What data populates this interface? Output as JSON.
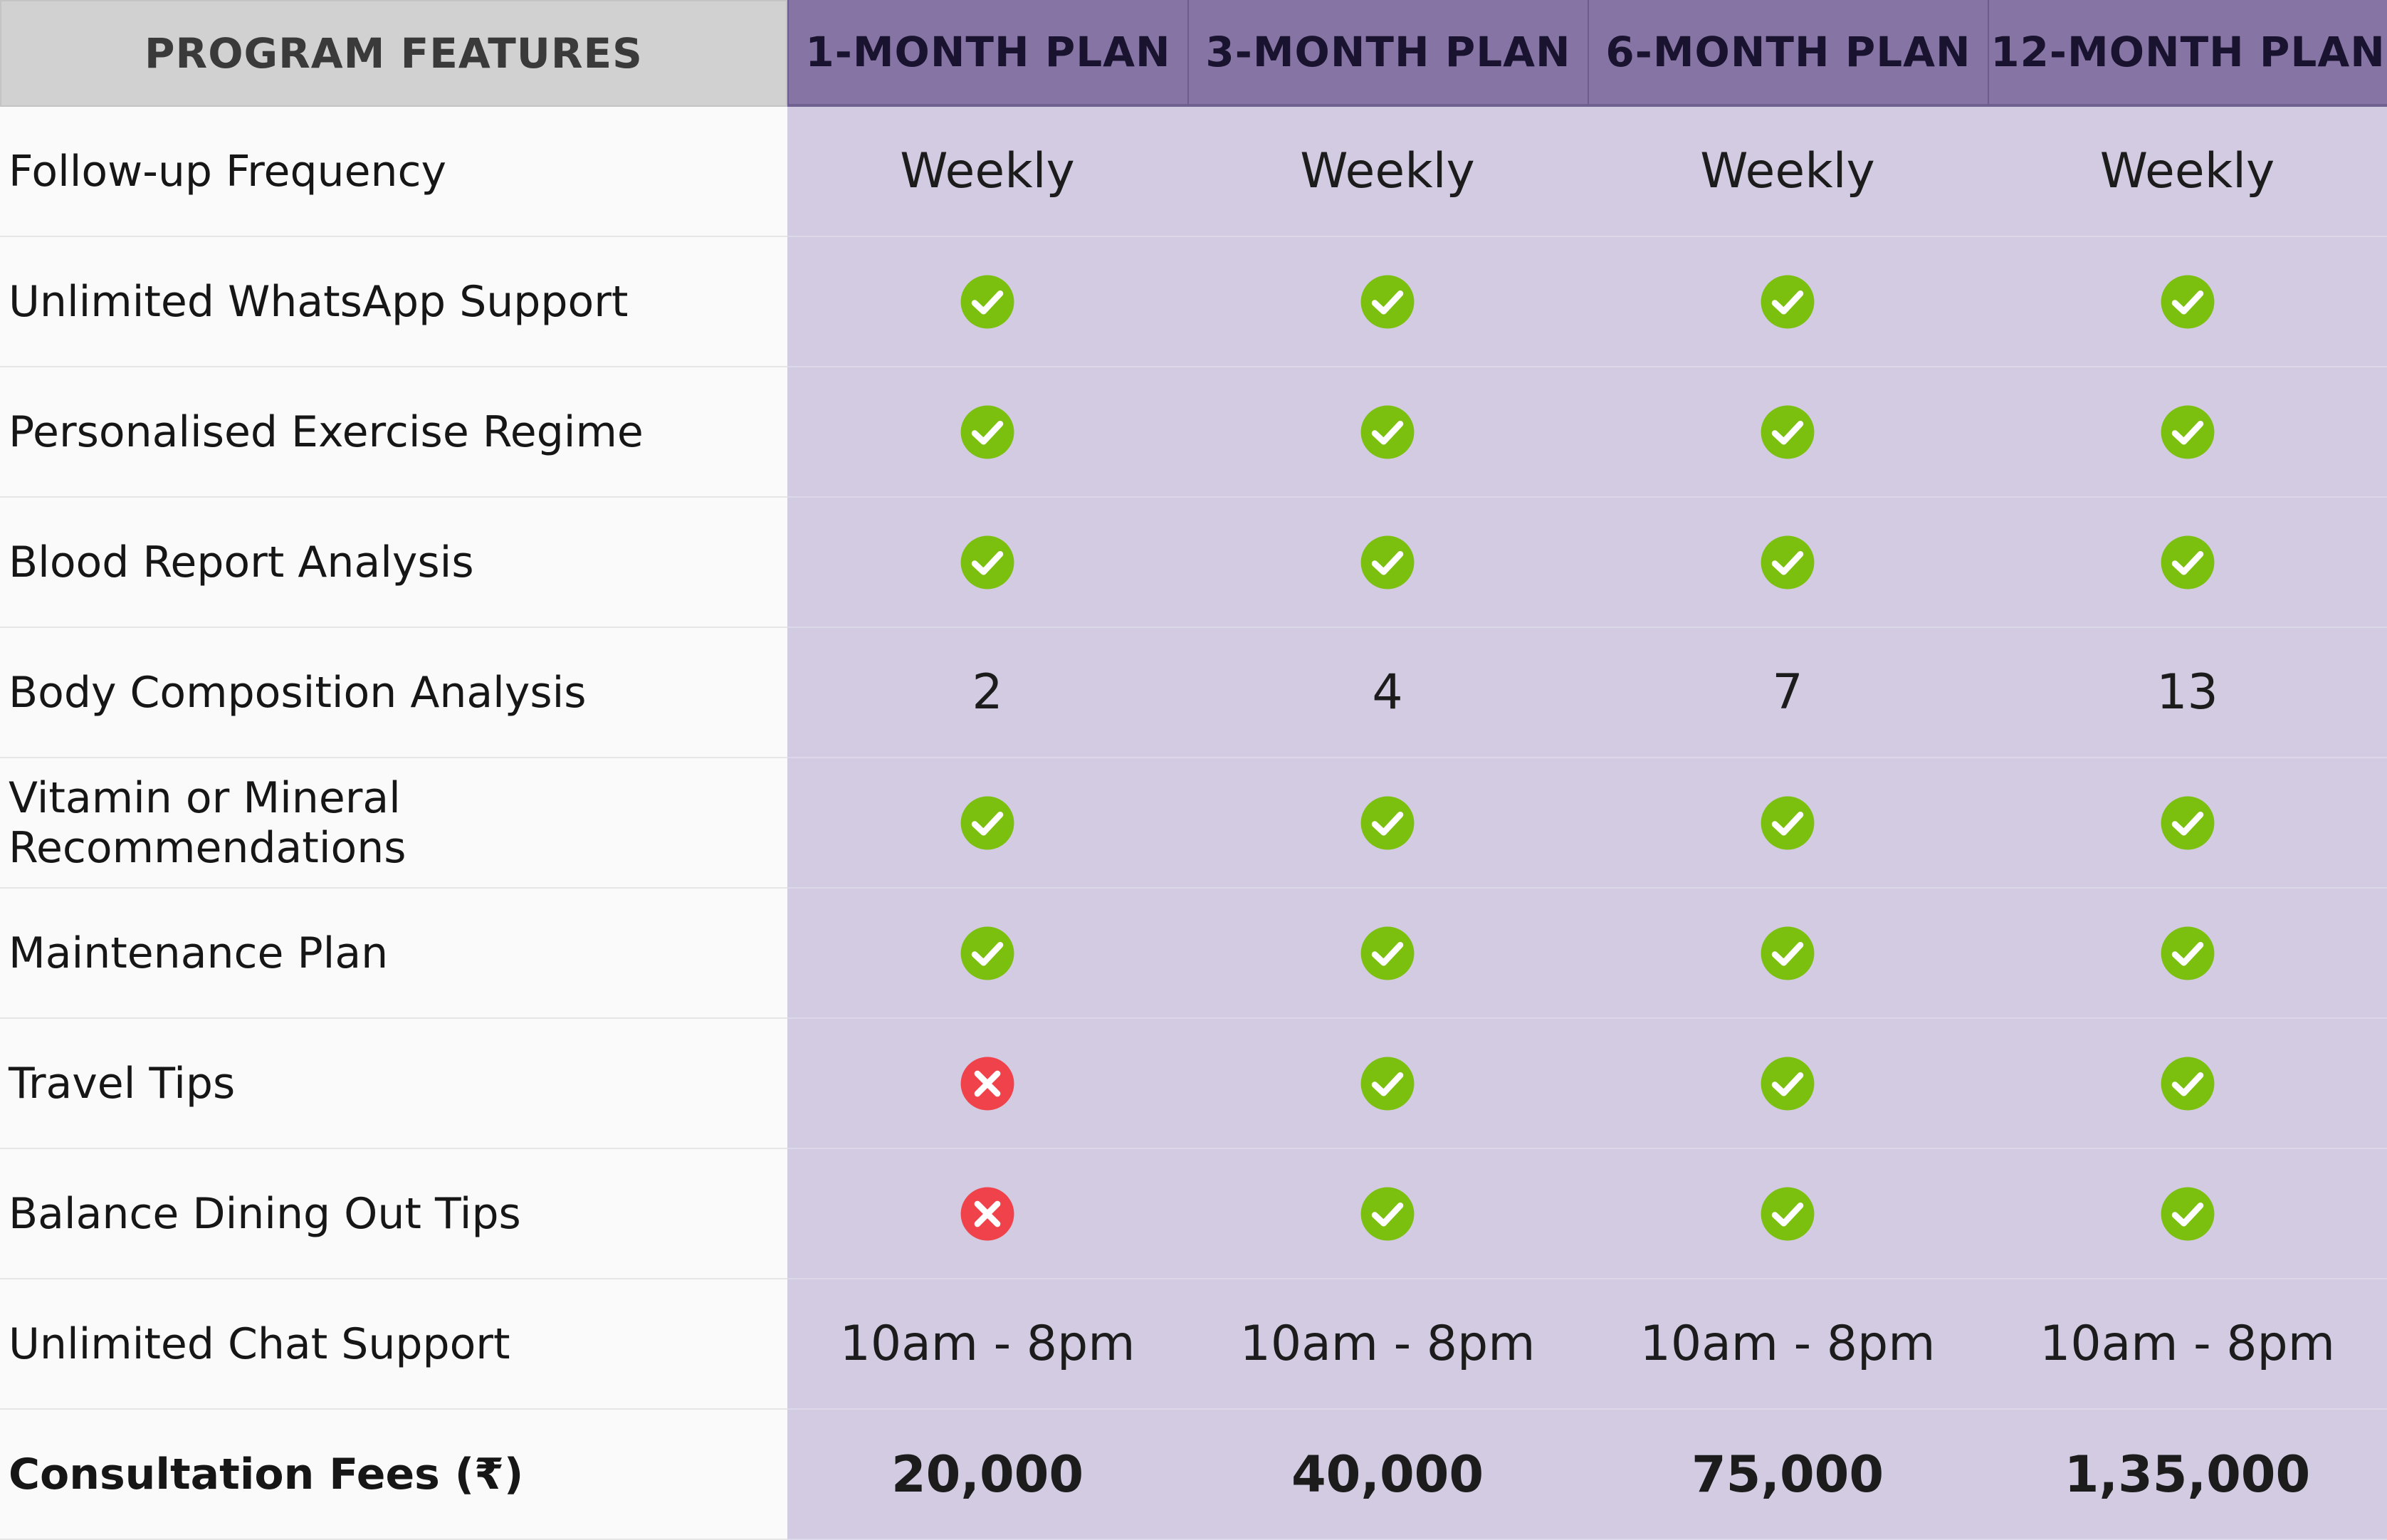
{
  "header": {
    "feature_label": "PROGRAM FEATURES",
    "plans": [
      "1-MONTH PLAN",
      "3-MONTH PLAN",
      "6-MONTH PLAN",
      "12-MONTH PLAN"
    ]
  },
  "colors": {
    "header_plan_bg": "#8675a4",
    "header_feature_bg": "#d1d1d1",
    "value_bg": "#d2cbe2",
    "feature_bg": "#fafafa",
    "check_green": "#7cc00f",
    "cross_red": "#f0424a"
  },
  "rows": [
    {
      "feature": "Follow-up Frequency",
      "type": "text",
      "values": [
        "Weekly",
        "Weekly",
        "Weekly",
        "Weekly"
      ]
    },
    {
      "feature": "Unlimited WhatsApp Support",
      "type": "icon",
      "values": [
        "check",
        "check",
        "check",
        "check"
      ]
    },
    {
      "feature": "Personalised Exercise Regime",
      "type": "icon",
      "values": [
        "check",
        "check",
        "check",
        "check"
      ]
    },
    {
      "feature": "Blood Report Analysis",
      "type": "icon",
      "values": [
        "check",
        "check",
        "check",
        "check"
      ]
    },
    {
      "feature": "Body Composition Analysis",
      "type": "text",
      "values": [
        "2",
        "4",
        "7",
        "13"
      ]
    },
    {
      "feature": "Vitamin or Mineral Recommendations",
      "type": "icon",
      "values": [
        "check",
        "check",
        "check",
        "check"
      ]
    },
    {
      "feature": "Maintenance Plan",
      "type": "icon",
      "values": [
        "check",
        "check",
        "check",
        "check"
      ]
    },
    {
      "feature": "Travel Tips",
      "type": "icon",
      "values": [
        "cross",
        "check",
        "check",
        "check"
      ]
    },
    {
      "feature": "Balance Dining Out Tips",
      "type": "icon",
      "values": [
        "cross",
        "check",
        "check",
        "check"
      ]
    },
    {
      "feature": "Unlimited Chat Support",
      "type": "text",
      "values": [
        "10am - 8pm",
        "10am - 8pm",
        "10am - 8pm",
        "10am - 8pm"
      ]
    },
    {
      "feature": "Consultation Fees (₹)",
      "type": "text",
      "bold": true,
      "values": [
        "20,000",
        "40,000",
        "75,000",
        "1,35,000"
      ]
    }
  ]
}
